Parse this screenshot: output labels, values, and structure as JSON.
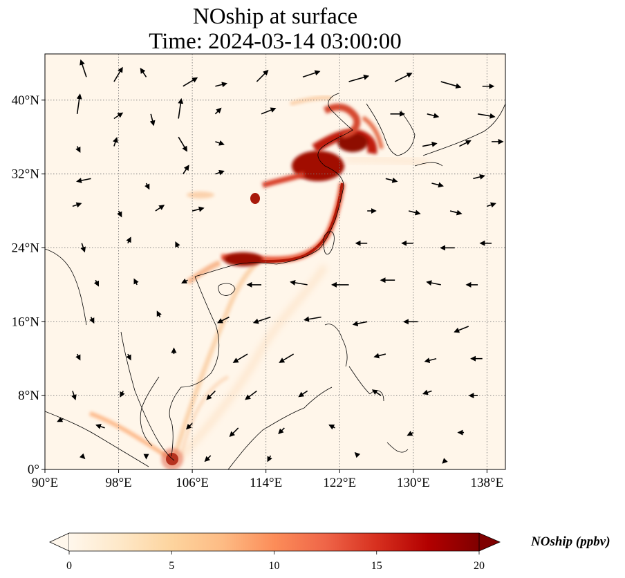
{
  "map": {
    "title_line1": "NOship at surface",
    "title_line2": "Time: 2024-03-14 03:00:00",
    "variable": "NOship",
    "level": "surface",
    "time": "2024-03-14 03:00:00",
    "extent": {
      "lon_min": 90,
      "lon_max": 140,
      "lat_min": 0,
      "lat_max": 45
    },
    "gridlines": {
      "visible": true,
      "style": "dotted"
    },
    "lon_ticks": [
      90,
      98,
      106,
      114,
      122,
      130,
      138
    ],
    "lon_tick_labels": [
      "90°E",
      "98°E",
      "106°E",
      "114°E",
      "122°E",
      "130°E",
      "138°E"
    ],
    "lat_ticks": [
      0,
      8,
      16,
      24,
      32,
      40
    ],
    "lat_tick_labels": [
      "0°",
      "8°N",
      "16°N",
      "24°N",
      "32°N",
      "40°N"
    ]
  },
  "colorbar": {
    "title": "NOship (ppbv)",
    "min": 0,
    "max": 20,
    "ticks": [
      0,
      5,
      10,
      15,
      20
    ],
    "tick_labels": [
      "0",
      "5",
      "10",
      "15",
      "20"
    ],
    "extend": "both",
    "colormap": "OrRd",
    "colors": [
      "#fff7ec",
      "#fee8c8",
      "#fdd49e",
      "#fdbb84",
      "#fc8d59",
      "#ef6548",
      "#d7301f",
      "#b30000",
      "#7f0000"
    ]
  },
  "concentration_features": [
    {
      "lon": 119.5,
      "lat": 32.8,
      "value": 18
    },
    {
      "lon": 121.7,
      "lat": 30.5,
      "value": 18
    },
    {
      "lon": 123.2,
      "lat": 35.7,
      "value": 15
    },
    {
      "lon": 122.2,
      "lat": 37.6,
      "value": 14
    },
    {
      "lon": 120.0,
      "lat": 26.0,
      "value": 16
    },
    {
      "lon": 116.5,
      "lat": 23.2,
      "value": 15
    },
    {
      "lon": 113.4,
      "lat": 22.2,
      "value": 17
    },
    {
      "lon": 112.2,
      "lat": 29.3,
      "value": 17
    },
    {
      "lon": 113.0,
      "lat": 31.0,
      "value": 12
    },
    {
      "lon": 110.5,
      "lat": 20.5,
      "value": 7
    },
    {
      "lon": 103.8,
      "lat": 1.2,
      "value": 20
    },
    {
      "lon": 99.0,
      "lat": 5.0,
      "value": 7
    },
    {
      "lon": 109.0,
      "lat": 12.0,
      "value": 5
    },
    {
      "lon": 108.5,
      "lat": 29.8,
      "value": 6
    }
  ],
  "wind_vectors": [
    {
      "lon": 94.5,
      "lat": 42.5,
      "u": -1.0,
      "v": 3.0
    },
    {
      "lon": 97.5,
      "lat": 42.0,
      "u": 1.5,
      "v": 2.5
    },
    {
      "lon": 101.0,
      "lat": 42.5,
      "u": -1.0,
      "v": 1.5
    },
    {
      "lon": 105.0,
      "lat": 41.5,
      "u": 2.5,
      "v": 1.5
    },
    {
      "lon": 108.5,
      "lat": 41.5,
      "u": 2.0,
      "v": 0.5
    },
    {
      "lon": 113.0,
      "lat": 42.0,
      "u": 2.0,
      "v": 2.0
    },
    {
      "lon": 118.0,
      "lat": 42.5,
      "u": 3.0,
      "v": 1.0
    },
    {
      "lon": 123.0,
      "lat": 42.0,
      "u": 3.5,
      "v": 1.0
    },
    {
      "lon": 128.0,
      "lat": 42.0,
      "u": 3.0,
      "v": 1.5
    },
    {
      "lon": 133.0,
      "lat": 42.0,
      "u": 3.5,
      "v": -1.0
    },
    {
      "lon": 137.5,
      "lat": 41.5,
      "u": 2.0,
      "v": 0.0
    },
    {
      "lon": 93.5,
      "lat": 38.5,
      "u": 0.5,
      "v": 3.5
    },
    {
      "lon": 97.5,
      "lat": 38.0,
      "u": 1.5,
      "v": 1.0
    },
    {
      "lon": 101.5,
      "lat": 38.5,
      "u": 0.5,
      "v": -2.0
    },
    {
      "lon": 104.5,
      "lat": 38.0,
      "u": 0.5,
      "v": 3.5
    },
    {
      "lon": 108.5,
      "lat": 38.5,
      "u": 1.0,
      "v": 1.0
    },
    {
      "lon": 113.5,
      "lat": 38.5,
      "u": 2.5,
      "v": 1.0
    },
    {
      "lon": 127.5,
      "lat": 38.5,
      "u": 2.5,
      "v": 0.0
    },
    {
      "lon": 131.5,
      "lat": 38.5,
      "u": 2.0,
      "v": -0.5
    },
    {
      "lon": 137.0,
      "lat": 38.5,
      "u": 3.0,
      "v": -0.5
    },
    {
      "lon": 93.5,
      "lat": 35.0,
      "u": 0.5,
      "v": -1.0
    },
    {
      "lon": 97.5,
      "lat": 35.0,
      "u": 0.5,
      "v": 1.5
    },
    {
      "lon": 104.5,
      "lat": 36.0,
      "u": 1.5,
      "v": -2.5
    },
    {
      "lon": 108.5,
      "lat": 35.5,
      "u": 1.5,
      "v": -0.5
    },
    {
      "lon": 131.0,
      "lat": 35.0,
      "u": 2.5,
      "v": 0.5
    },
    {
      "lon": 135.0,
      "lat": 35.0,
      "u": 2.0,
      "v": 1.0
    },
    {
      "lon": 138.5,
      "lat": 35.5,
      "u": 2.0,
      "v": 0.0
    },
    {
      "lon": 95.0,
      "lat": 31.5,
      "u": -2.5,
      "v": -0.5
    },
    {
      "lon": 101.0,
      "lat": 31.0,
      "u": 0.5,
      "v": -1.0
    },
    {
      "lon": 105.0,
      "lat": 32.0,
      "u": 1.0,
      "v": 1.5
    },
    {
      "lon": 108.5,
      "lat": 32.0,
      "u": 1.5,
      "v": 0.5
    },
    {
      "lon": 127.0,
      "lat": 31.5,
      "u": 2.0,
      "v": -0.5
    },
    {
      "lon": 132.0,
      "lat": 31.0,
      "u": 2.0,
      "v": -0.5
    },
    {
      "lon": 136.5,
      "lat": 31.5,
      "u": 2.0,
      "v": 0.5
    },
    {
      "lon": 93.0,
      "lat": 28.5,
      "u": 1.5,
      "v": 0.5
    },
    {
      "lon": 98.0,
      "lat": 28.0,
      "u": 0.5,
      "v": -1.0
    },
    {
      "lon": 102.0,
      "lat": 28.0,
      "u": 1.5,
      "v": 1.0
    },
    {
      "lon": 106.0,
      "lat": 28.0,
      "u": 2.0,
      "v": 0.5
    },
    {
      "lon": 125.0,
      "lat": 28.0,
      "u": 1.5,
      "v": 0.0
    },
    {
      "lon": 129.5,
      "lat": 28.0,
      "u": 2.0,
      "v": -0.5
    },
    {
      "lon": 134.0,
      "lat": 28.0,
      "u": 2.0,
      "v": -0.5
    },
    {
      "lon": 138.0,
      "lat": 28.5,
      "u": 1.5,
      "v": 0.5
    },
    {
      "lon": 94.0,
      "lat": 24.5,
      "u": 0.5,
      "v": -1.5
    },
    {
      "lon": 99.0,
      "lat": 24.5,
      "u": 0.5,
      "v": 1.0
    },
    {
      "lon": 104.5,
      "lat": 24.0,
      "u": -0.5,
      "v": 1.0
    },
    {
      "lon": 125.0,
      "lat": 24.5,
      "u": -2.0,
      "v": 0.0
    },
    {
      "lon": 130.0,
      "lat": 24.5,
      "u": -2.0,
      "v": 0.0
    },
    {
      "lon": 134.5,
      "lat": 24.0,
      "u": -2.5,
      "v": 0.0
    },
    {
      "lon": 138.5,
      "lat": 24.5,
      "u": -2.0,
      "v": 0.0
    },
    {
      "lon": 95.5,
      "lat": 20.5,
      "u": 0.5,
      "v": -1.0
    },
    {
      "lon": 100.0,
      "lat": 20.0,
      "u": -0.5,
      "v": 1.0
    },
    {
      "lon": 105.5,
      "lat": 20.5,
      "u": -1.0,
      "v": -0.5
    },
    {
      "lon": 113.5,
      "lat": 20.0,
      "u": -2.5,
      "v": 0.0
    },
    {
      "lon": 118.5,
      "lat": 20.0,
      "u": -3.0,
      "v": 0.5
    },
    {
      "lon": 123.0,
      "lat": 20.0,
      "u": -3.0,
      "v": 0.0
    },
    {
      "lon": 128.0,
      "lat": 20.5,
      "u": -2.5,
      "v": 0.0
    },
    {
      "lon": 133.0,
      "lat": 20.0,
      "u": -2.5,
      "v": 0.5
    },
    {
      "lon": 137.0,
      "lat": 20.0,
      "u": -2.0,
      "v": 0.0
    },
    {
      "lon": 95.0,
      "lat": 16.5,
      "u": 0.5,
      "v": -1.0
    },
    {
      "lon": 102.5,
      "lat": 16.5,
      "u": -0.5,
      "v": 1.0
    },
    {
      "lon": 110.0,
      "lat": 16.5,
      "u": -2.0,
      "v": -1.0
    },
    {
      "lon": 114.5,
      "lat": 16.5,
      "u": -3.0,
      "v": -1.0
    },
    {
      "lon": 120.0,
      "lat": 16.5,
      "u": -3.0,
      "v": -0.5
    },
    {
      "lon": 125.0,
      "lat": 16.0,
      "u": -2.5,
      "v": -0.5
    },
    {
      "lon": 130.5,
      "lat": 16.0,
      "u": -2.5,
      "v": 0.0
    },
    {
      "lon": 136.0,
      "lat": 15.5,
      "u": -2.5,
      "v": -1.0
    },
    {
      "lon": 93.5,
      "lat": 12.5,
      "u": 0.5,
      "v": -1.0
    },
    {
      "lon": 99.0,
      "lat": 12.5,
      "u": 0.5,
      "v": -1.0
    },
    {
      "lon": 104.0,
      "lat": 12.5,
      "u": 0.0,
      "v": 1.0
    },
    {
      "lon": 112.0,
      "lat": 12.5,
      "u": -2.5,
      "v": -1.5
    },
    {
      "lon": 117.0,
      "lat": 12.5,
      "u": -2.5,
      "v": -1.5
    },
    {
      "lon": 127.0,
      "lat": 12.5,
      "u": -2.0,
      "v": -0.5
    },
    {
      "lon": 132.5,
      "lat": 12.0,
      "u": -2.0,
      "v": -0.5
    },
    {
      "lon": 137.5,
      "lat": 12.0,
      "u": -2.0,
      "v": 0.0
    },
    {
      "lon": 93.0,
      "lat": 8.5,
      "u": 0.5,
      "v": -1.5
    },
    {
      "lon": 98.5,
      "lat": 8.5,
      "u": -0.5,
      "v": -1.0
    },
    {
      "lon": 108.5,
      "lat": 8.5,
      "u": -1.5,
      "v": -1.5
    },
    {
      "lon": 113.0,
      "lat": 8.5,
      "u": -2.0,
      "v": -1.5
    },
    {
      "lon": 118.5,
      "lat": 8.5,
      "u": -1.5,
      "v": -1.0
    },
    {
      "lon": 126.5,
      "lat": 8.0,
      "u": -1.5,
      "v": 1.0
    },
    {
      "lon": 132.0,
      "lat": 8.5,
      "u": -1.5,
      "v": -0.5
    },
    {
      "lon": 137.0,
      "lat": 8.0,
      "u": -1.5,
      "v": 0.0
    },
    {
      "lon": 92.0,
      "lat": 5.5,
      "u": -1.0,
      "v": -0.5
    },
    {
      "lon": 96.5,
      "lat": 4.5,
      "u": -1.5,
      "v": 0.5
    },
    {
      "lon": 106.0,
      "lat": 5.0,
      "u": -1.0,
      "v": -1.0
    },
    {
      "lon": 111.0,
      "lat": 4.5,
      "u": -1.5,
      "v": -1.5
    },
    {
      "lon": 116.0,
      "lat": 4.5,
      "u": -1.0,
      "v": -1.0
    },
    {
      "lon": 121.5,
      "lat": 4.5,
      "u": -1.0,
      "v": 0.5
    },
    {
      "lon": 130.0,
      "lat": 4.0,
      "u": -1.0,
      "v": -0.5
    },
    {
      "lon": 135.5,
      "lat": 4.0,
      "u": -1.0,
      "v": 0.0
    },
    {
      "lon": 94.0,
      "lat": 1.5,
      "u": 0.5,
      "v": -0.5
    },
    {
      "lon": 101.0,
      "lat": 1.5,
      "u": 0.0,
      "v": -0.5
    },
    {
      "lon": 108.0,
      "lat": 1.5,
      "u": -1.0,
      "v": -1.0
    },
    {
      "lon": 114.5,
      "lat": 1.5,
      "u": -0.5,
      "v": -1.0
    },
    {
      "lon": 124.0,
      "lat": 1.5,
      "u": -0.5,
      "v": 0.5
    },
    {
      "lon": 133.5,
      "lat": 1.0,
      "u": -0.5,
      "v": -0.5
    }
  ]
}
